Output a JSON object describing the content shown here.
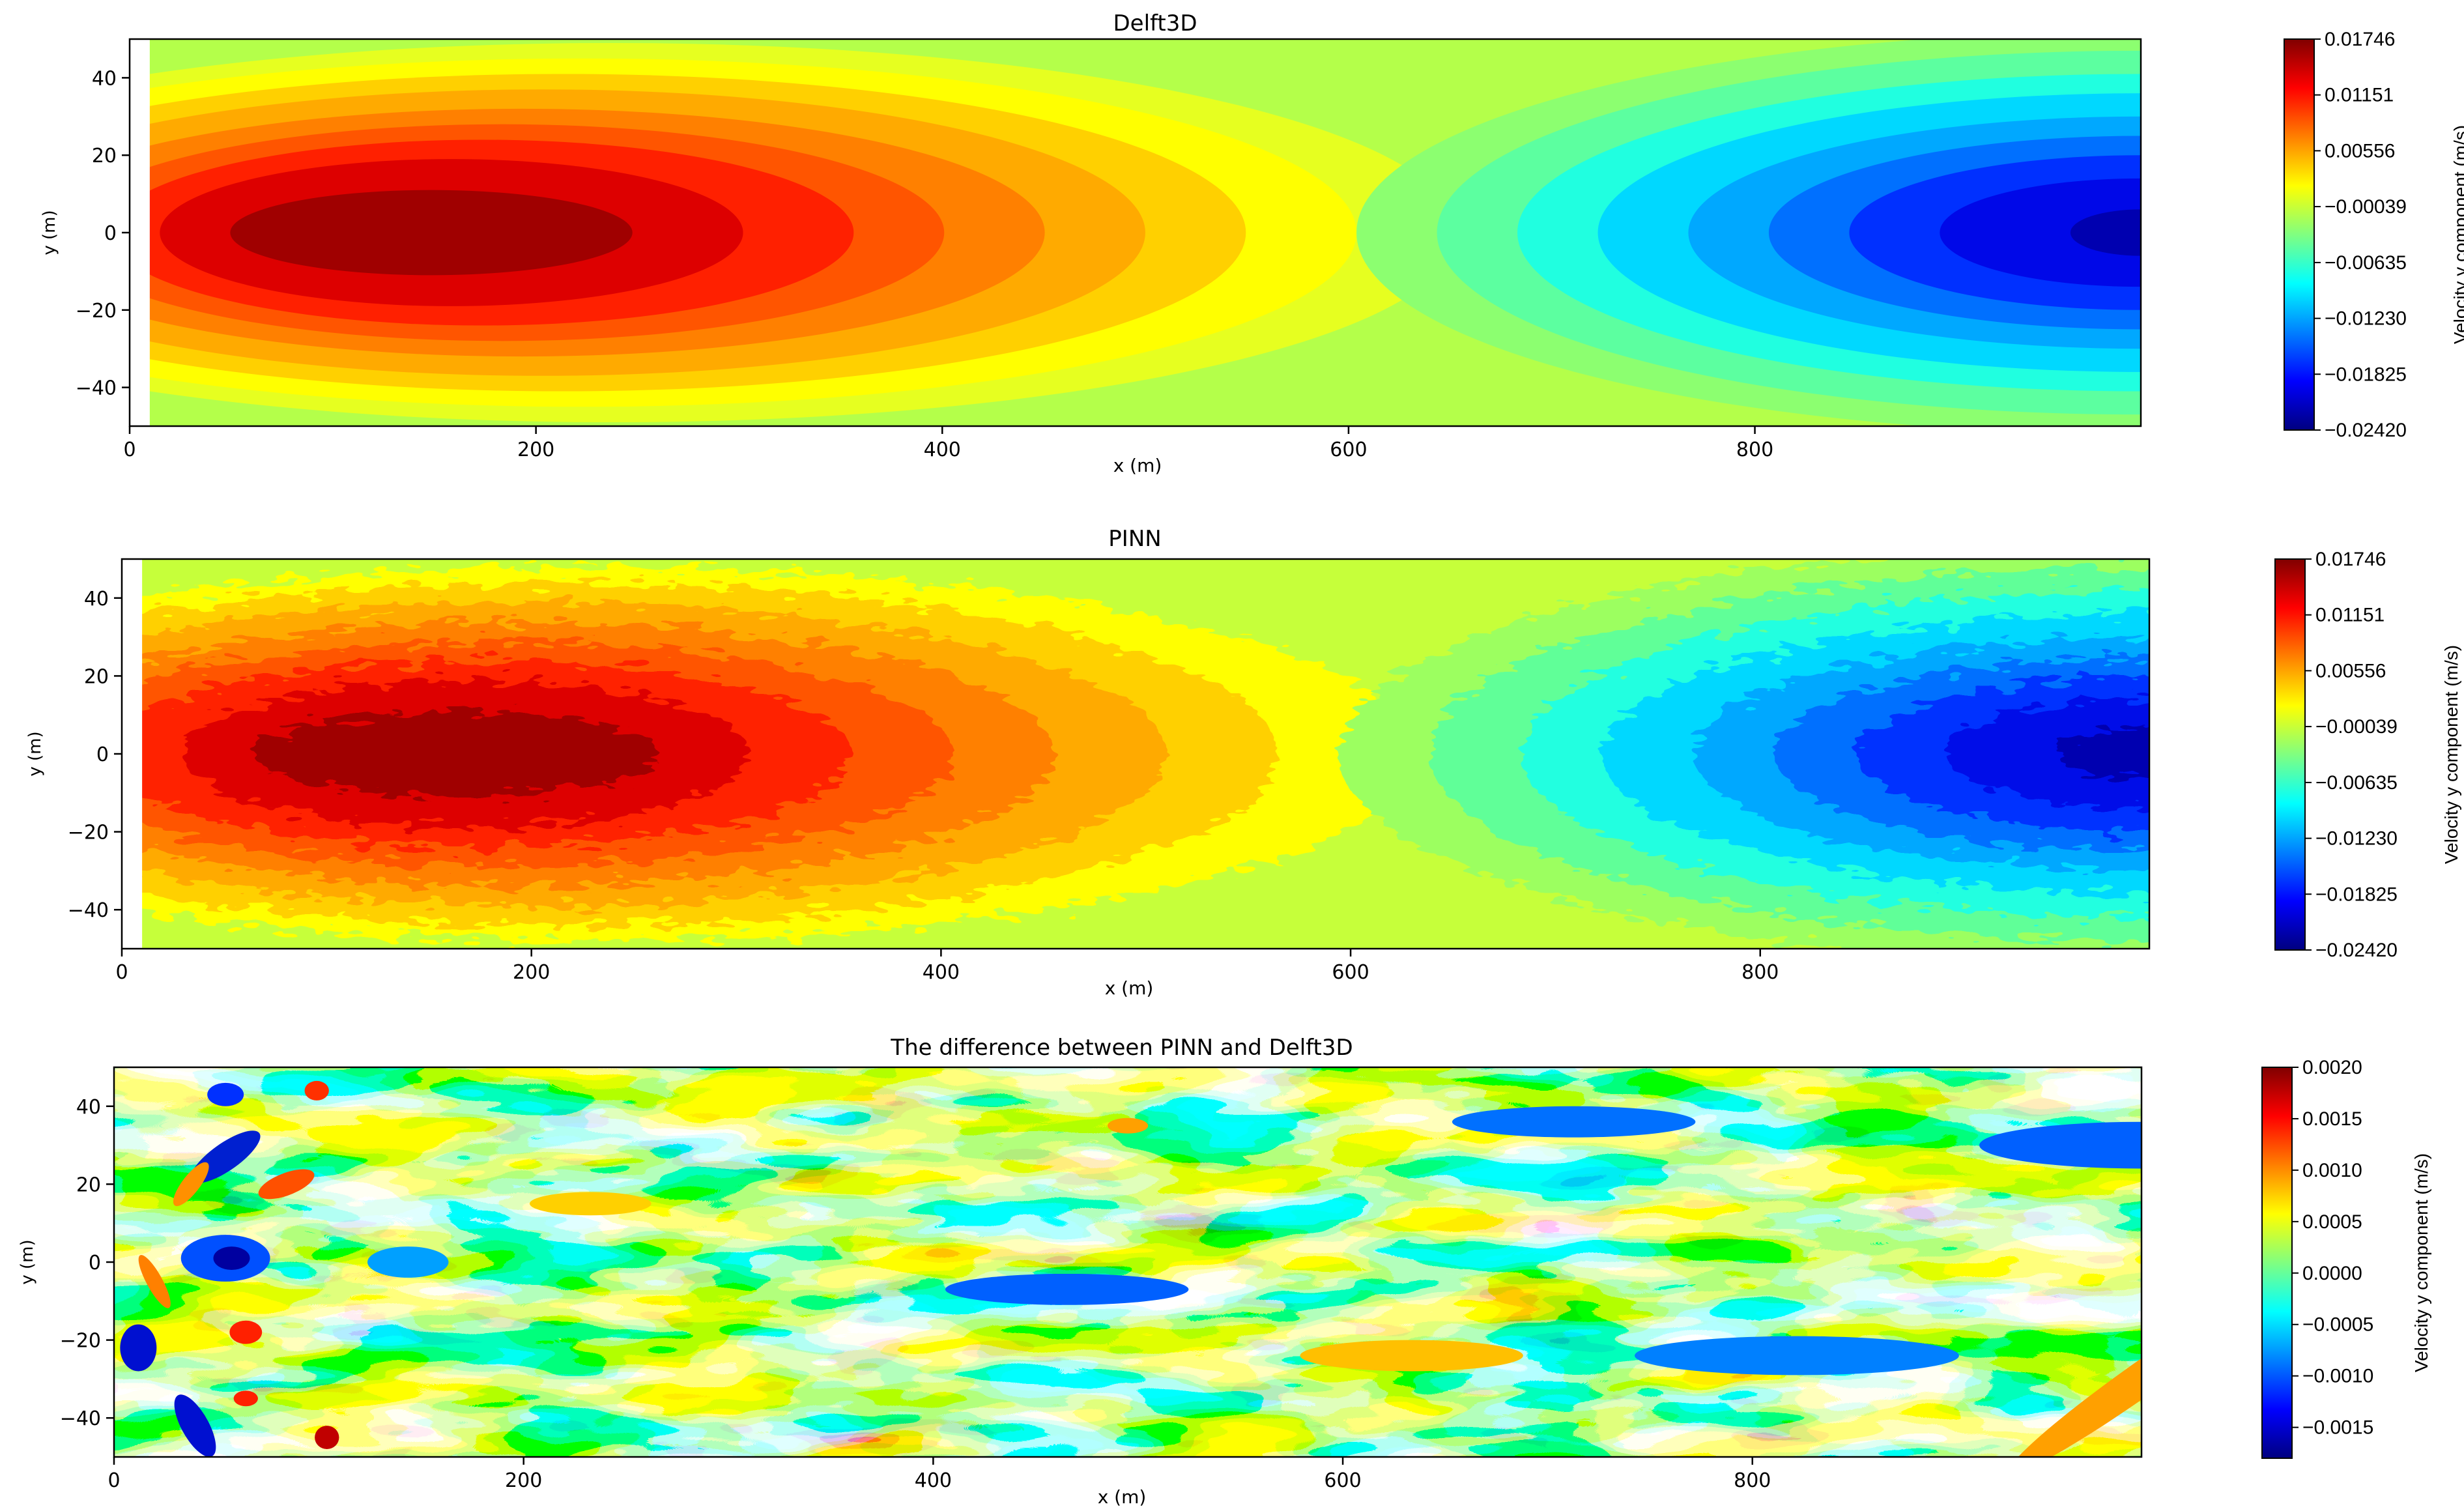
{
  "chart_data": [
    {
      "type": "heatmap",
      "title": "Delft3D",
      "xlabel": "x (m)",
      "ylabel": "y (m)",
      "xlim": [
        0,
        990
      ],
      "ylim": [
        -50,
        50
      ],
      "xticks": [
        0,
        200,
        400,
        600,
        800
      ],
      "xtick_labels": [
        "0",
        "200",
        "400",
        "600",
        "800"
      ],
      "yticks": [
        40,
        20,
        0,
        -20,
        -40
      ],
      "ytick_labels": [
        "40",
        "20",
        "0",
        "−20",
        "−40"
      ],
      "colormap": "jet",
      "field": "smooth dipole: positive max near x=110, y=0; negative min near x=980, y=0",
      "colorbar": {
        "label": "Velocity y component (m/s)",
        "min": -0.0242,
        "max": 0.01746,
        "tick_values": [
          0.01746,
          0.01151,
          0.00556,
          -0.00039,
          -0.00635,
          -0.0123,
          -0.01825,
          -0.0242
        ],
        "tick_labels": [
          "0.01746",
          "0.01151",
          "0.00556",
          "−0.00039",
          "−0.00635",
          "−0.01230",
          "−0.01825",
          "−0.02420"
        ]
      }
    },
    {
      "type": "heatmap",
      "title": "PINN",
      "xlabel": "x (m)",
      "ylabel": "y (m)",
      "xlim": [
        0,
        990
      ],
      "ylim": [
        -50,
        50
      ],
      "xticks": [
        0,
        200,
        400,
        600,
        800
      ],
      "xtick_labels": [
        "0",
        "200",
        "400",
        "600",
        "800"
      ],
      "yticks": [
        40,
        20,
        0,
        -20,
        -40
      ],
      "ytick_labels": [
        "40",
        "20",
        "0",
        "−20",
        "−40"
      ],
      "colormap": "jet",
      "field": "noisy dipole: positive max near x=140, y=0; negative min near x=980, y=0",
      "colorbar": {
        "label": "Velocity y component (m/s)",
        "min": -0.0242,
        "max": 0.01746,
        "tick_values": [
          0.01746,
          0.01151,
          0.00556,
          -0.00039,
          -0.00635,
          -0.0123,
          -0.01825,
          -0.0242
        ],
        "tick_labels": [
          "0.01746",
          "0.01151",
          "0.00556",
          "−0.00039",
          "−0.00635",
          "−0.01230",
          "−0.01825",
          "−0.02420"
        ]
      }
    },
    {
      "type": "heatmap",
      "title": "The difference between PINN and Delft3D",
      "xlabel": "x (m)",
      "ylabel": "y (m)",
      "xlim": [
        0,
        990
      ],
      "ylim": [
        -50,
        50
      ],
      "xticks": [
        0,
        200,
        400,
        600,
        800
      ],
      "xtick_labels": [
        "0",
        "200",
        "400",
        "600",
        "800"
      ],
      "yticks": [
        40,
        20,
        0,
        -20,
        -40
      ],
      "ytick_labels": [
        "40",
        "20",
        "0",
        "−20",
        "−40"
      ],
      "colormap": "jet",
      "field": "small-amplitude noise, strongest near x<120",
      "colorbar": {
        "label": "Velocity y component (m/s)",
        "min": -0.0018,
        "max": 0.002,
        "tick_values": [
          0.002,
          0.0015,
          0.001,
          0.0005,
          0.0,
          -0.0005,
          -0.001,
          -0.0015
        ],
        "tick_labels": [
          "0.0020",
          "0.0015",
          "0.0010",
          "0.0005",
          "0.0000",
          "−0.0005",
          "−0.0010",
          "−0.0015"
        ]
      }
    }
  ]
}
